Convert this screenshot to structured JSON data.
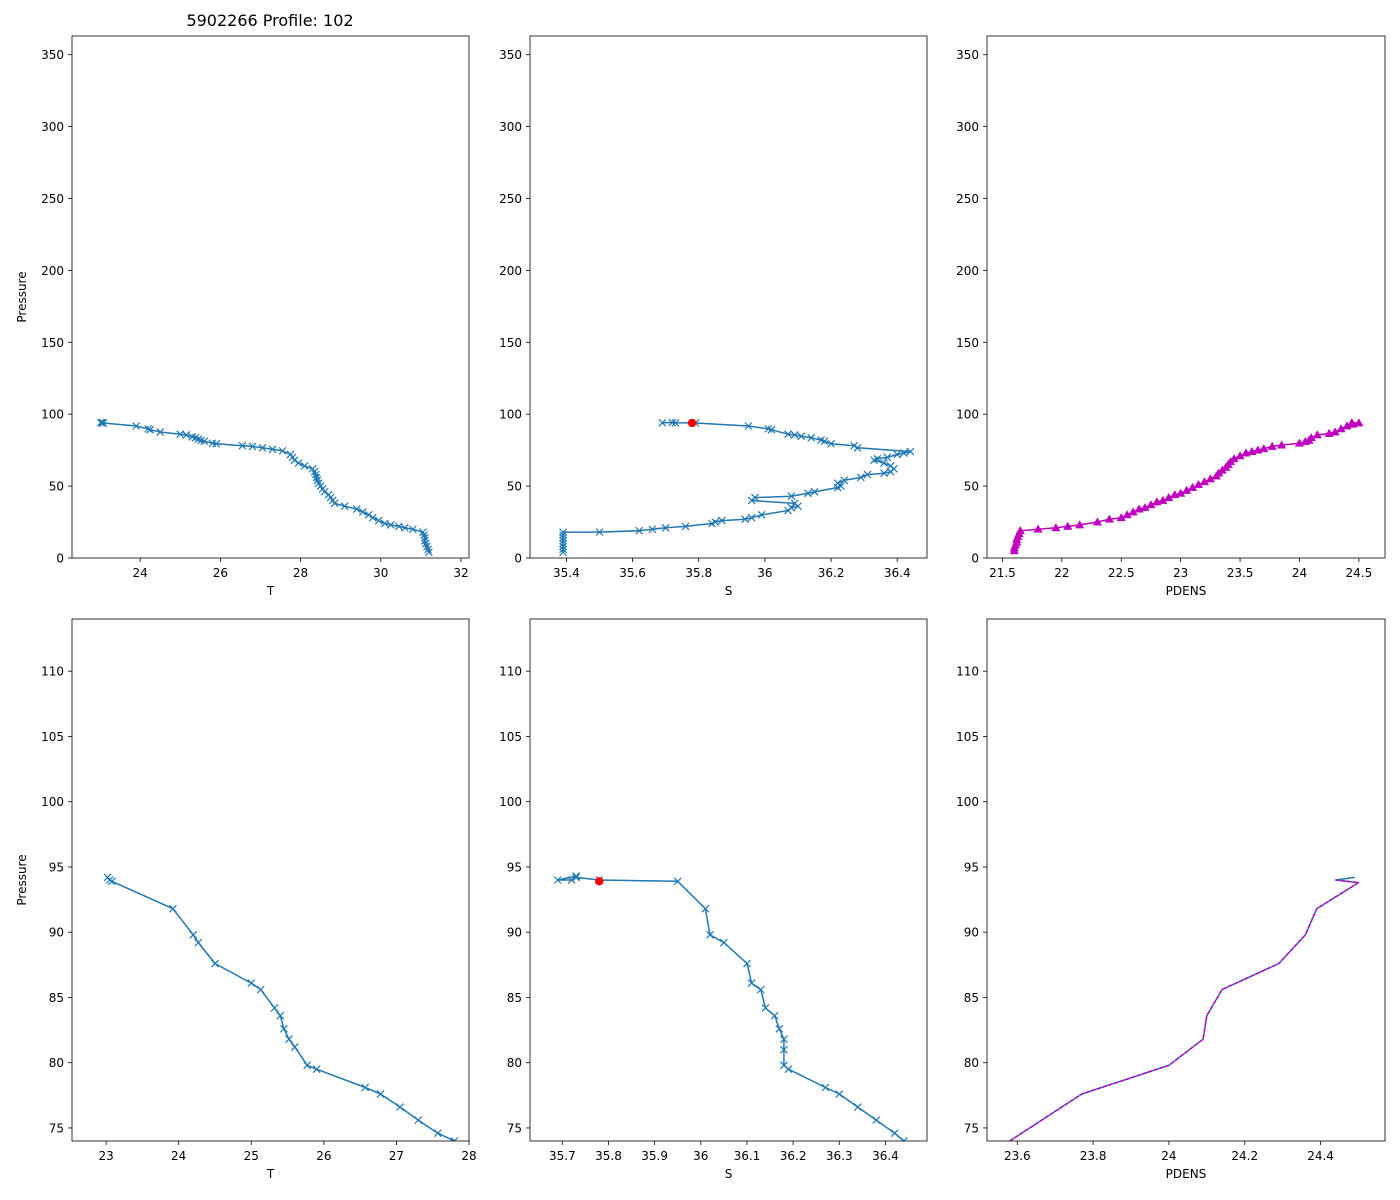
{
  "figure_title": "5902266 Profile: 102",
  "chart_data": [
    {
      "id": "top-T",
      "type": "line",
      "xlabel": "T",
      "ylabel": "Pressure",
      "xlim": [
        22.3,
        32.2
      ],
      "ylim": [
        363,
        0
      ],
      "xticks": [
        24,
        26,
        28,
        30,
        32
      ],
      "yticks": [
        0,
        50,
        100,
        150,
        200,
        250,
        300,
        350
      ],
      "series": [
        {
          "name": "T",
          "color": "#1f77b4",
          "marker": "x",
          "x": [
            31.2,
            31.18,
            31.15,
            31.12,
            31.1,
            31.1,
            31.08,
            31.05,
            30.8,
            30.6,
            30.45,
            30.25,
            30.1,
            29.95,
            29.8,
            29.7,
            29.55,
            29.4,
            29.1,
            28.85,
            28.8,
            28.75,
            28.7,
            28.6,
            28.55,
            28.5,
            28.45,
            28.42,
            28.4,
            28.38,
            28.35,
            28.3,
            28.1,
            27.95,
            27.85,
            27.8,
            27.75,
            27.55,
            27.3,
            27.05,
            26.8,
            26.55,
            25.9,
            25.8,
            25.6,
            25.52,
            25.45,
            25.38,
            25.3,
            25.15,
            25.0,
            24.5,
            24.25,
            24.2,
            23.9,
            23.08,
            23.05,
            23.02
          ],
          "y": [
            4,
            6,
            8,
            10,
            12,
            14,
            16,
            18,
            20,
            21,
            22,
            23,
            24,
            26,
            28,
            30,
            32,
            34,
            36,
            38,
            40,
            42,
            44,
            46,
            48,
            50,
            52,
            54,
            56,
            58,
            60,
            62,
            64,
            66,
            68,
            70,
            72,
            74.5,
            75.6,
            76.6,
            77.6,
            78.1,
            79.5,
            79.8,
            81.2,
            81.8,
            82.6,
            83.6,
            84.2,
            85.6,
            86.1,
            87.6,
            89.2,
            89.8,
            91.8,
            93.9,
            94.0,
            94.2
          ]
        }
      ]
    },
    {
      "id": "top-S",
      "type": "line",
      "xlabel": "S",
      "ylabel": "",
      "xlim": [
        35.29,
        36.49
      ],
      "ylim": [
        363,
        0
      ],
      "xticks": [
        35.4,
        35.6,
        35.8,
        36.0,
        36.2,
        36.4
      ],
      "yticks": [
        0,
        50,
        100,
        150,
        200,
        250,
        300,
        350
      ],
      "series": [
        {
          "name": "S",
          "color": "#1f77b4",
          "marker": "x",
          "x": [
            35.39,
            35.39,
            35.39,
            35.39,
            35.39,
            35.39,
            35.39,
            35.39,
            35.5,
            35.62,
            35.66,
            35.7,
            35.76,
            35.84,
            35.85,
            35.87,
            35.94,
            35.96,
            35.99,
            36.07,
            36.08,
            36.1,
            36.09,
            35.96,
            35.97,
            36.08,
            36.13,
            36.15,
            36.22,
            36.23,
            36.22,
            36.24,
            36.29,
            36.31,
            36.36,
            36.38,
            36.39,
            36.38,
            36.36,
            36.33,
            36.34,
            36.37,
            36.4,
            36.42,
            36.44,
            36.28,
            36.27,
            36.2,
            36.18,
            36.17,
            36.14,
            36.11,
            36.09,
            36.07,
            36.02,
            36.01,
            35.95,
            35.79,
            35.73,
            35.72,
            35.69
          ],
          "y": [
            4,
            6,
            8,
            10,
            12,
            14,
            16,
            18,
            18,
            19,
            20,
            21,
            22,
            24,
            25,
            26,
            27,
            28,
            30,
            33,
            35,
            36,
            38,
            40,
            42,
            43,
            45,
            46,
            49,
            50,
            52,
            54,
            56,
            58,
            59,
            60,
            62,
            64,
            66,
            68,
            69,
            70,
            72,
            73,
            74,
            76.6,
            78.1,
            79.5,
            81.2,
            82.0,
            83.6,
            84.6,
            85.6,
            86.1,
            89.2,
            89.8,
            91.8,
            93.9,
            94.0,
            94.2,
            94.0
          ]
        },
        {
          "name": "flag",
          "color": "#ff0000",
          "marker": "o",
          "x": [
            35.78
          ],
          "y": [
            93.9
          ]
        }
      ]
    },
    {
      "id": "top-PDENS",
      "type": "line",
      "xlabel": "PDENS",
      "ylabel": "",
      "xlim": [
        21.37,
        24.72
      ],
      "ylim": [
        363,
        0
      ],
      "xticks": [
        21.5,
        22.0,
        22.5,
        23.0,
        23.5,
        24.0,
        24.5
      ],
      "yticks": [
        0,
        50,
        100,
        150,
        200,
        250,
        300,
        350
      ],
      "series": [
        {
          "name": "PDENS",
          "color": "#bf00bf",
          "marker": "^",
          "x": [
            21.6,
            21.6,
            21.61,
            21.62,
            21.62,
            21.63,
            21.64,
            21.65,
            21.8,
            21.95,
            22.05,
            22.15,
            22.3,
            22.4,
            22.5,
            22.55,
            22.6,
            22.65,
            22.7,
            22.75,
            22.8,
            22.85,
            22.9,
            22.95,
            23.0,
            23.05,
            23.1,
            23.15,
            23.2,
            23.25,
            23.3,
            23.32,
            23.35,
            23.38,
            23.4,
            23.42,
            23.45,
            23.5,
            23.55,
            23.6,
            23.65,
            23.7,
            23.77,
            23.85,
            24.0,
            24.05,
            24.08,
            24.1,
            24.15,
            24.25,
            24.3,
            24.35,
            24.4,
            24.45,
            24.5,
            24.44
          ],
          "y": [
            5,
            7,
            9,
            11,
            13,
            15,
            17,
            19,
            20,
            21,
            22,
            23,
            25,
            27,
            28,
            30,
            32,
            34,
            35,
            37,
            39,
            40,
            42,
            44,
            45,
            47,
            49,
            51,
            53,
            55,
            57,
            59,
            61,
            63,
            65,
            67,
            69,
            71,
            73,
            74,
            75,
            76,
            77.6,
            78.5,
            79.8,
            81.0,
            81.8,
            83.6,
            85.6,
            86.6,
            87.6,
            89.8,
            91.8,
            93.0,
            93.9,
            94.0
          ]
        }
      ]
    },
    {
      "id": "bottom-T",
      "type": "line",
      "xlabel": "T",
      "ylabel": "Pressure",
      "xlim": [
        22.53,
        28.0
      ],
      "ylim": [
        114,
        74
      ],
      "xticks": [
        23,
        24,
        25,
        26,
        27,
        28
      ],
      "yticks": [
        75,
        80,
        85,
        90,
        95,
        100,
        105,
        110
      ],
      "series": [
        {
          "name": "T",
          "color": "#1f77b4",
          "marker": "x",
          "x": [
            27.8,
            27.57,
            27.3,
            27.05,
            26.78,
            26.57,
            25.9,
            25.77,
            25.6,
            25.52,
            25.45,
            25.4,
            25.32,
            25.13,
            25.0,
            24.5,
            24.27,
            24.2,
            23.92,
            23.08,
            23.05,
            23.02
          ],
          "y": [
            74.0,
            74.6,
            75.6,
            76.6,
            77.6,
            78.1,
            79.5,
            79.8,
            81.2,
            81.8,
            82.6,
            83.6,
            84.2,
            85.6,
            86.1,
            87.6,
            89.2,
            89.8,
            91.8,
            93.9,
            94.0,
            94.2
          ]
        }
      ]
    },
    {
      "id": "bottom-S",
      "type": "line",
      "xlabel": "S",
      "ylabel": "",
      "xlim": [
        35.63,
        36.49
      ],
      "ylim": [
        114,
        74
      ],
      "xticks": [
        35.7,
        35.8,
        35.9,
        36.0,
        36.1,
        36.2,
        36.3,
        36.4
      ],
      "yticks": [
        75,
        80,
        85,
        90,
        95,
        100,
        105,
        110
      ],
      "series": [
        {
          "name": "S",
          "color": "#1f77b4",
          "marker": "x",
          "x": [
            36.44,
            36.42,
            36.38,
            36.34,
            36.3,
            36.27,
            36.19,
            36.18,
            36.18,
            36.18,
            36.17,
            36.16,
            36.14,
            36.13,
            36.11,
            36.1,
            36.05,
            36.02,
            36.01,
            35.95,
            35.78,
            35.73,
            35.72,
            35.69,
            35.73
          ],
          "y": [
            74.0,
            74.6,
            75.6,
            76.6,
            77.6,
            78.1,
            79.5,
            79.8,
            81.0,
            81.8,
            82.6,
            83.6,
            84.2,
            85.6,
            86.1,
            87.6,
            89.2,
            89.8,
            91.8,
            93.9,
            94.0,
            94.2,
            94.0,
            94.0,
            94.3
          ]
        },
        {
          "name": "flag",
          "color": "#ff0000",
          "marker": "o",
          "x": [
            35.78
          ],
          "y": [
            93.9
          ]
        }
      ]
    },
    {
      "id": "bottom-PDENS",
      "type": "line",
      "xlabel": "PDENS",
      "ylabel": "",
      "xlim": [
        23.52,
        24.57
      ],
      "ylim": [
        114,
        74
      ],
      "xticks": [
        23.6,
        23.8,
        24.0,
        24.2,
        24.4
      ],
      "yticks": [
        75,
        80,
        85,
        90,
        95,
        100,
        105,
        110
      ],
      "series": [
        {
          "name": "PDENS",
          "color": "#1f77b4",
          "marker": "",
          "x": [
            23.58,
            23.77,
            24.0,
            24.09,
            24.1,
            24.14,
            24.29,
            24.36,
            24.39,
            24.5,
            24.44,
            24.49
          ],
          "y": [
            74.0,
            77.6,
            79.8,
            81.8,
            83.6,
            85.6,
            87.6,
            89.8,
            91.8,
            93.8,
            94.0,
            94.2
          ]
        },
        {
          "name": "PDENS-overlay",
          "color": "#bf00bf",
          "marker": "",
          "dashed": true,
          "x": [
            23.58,
            23.77,
            24.0,
            24.09,
            24.1,
            24.14,
            24.29,
            24.36,
            24.39,
            24.5,
            24.44
          ],
          "y": [
            74.0,
            77.6,
            79.8,
            81.8,
            83.6,
            85.6,
            87.6,
            89.8,
            91.8,
            93.8,
            94.0
          ]
        }
      ]
    }
  ]
}
